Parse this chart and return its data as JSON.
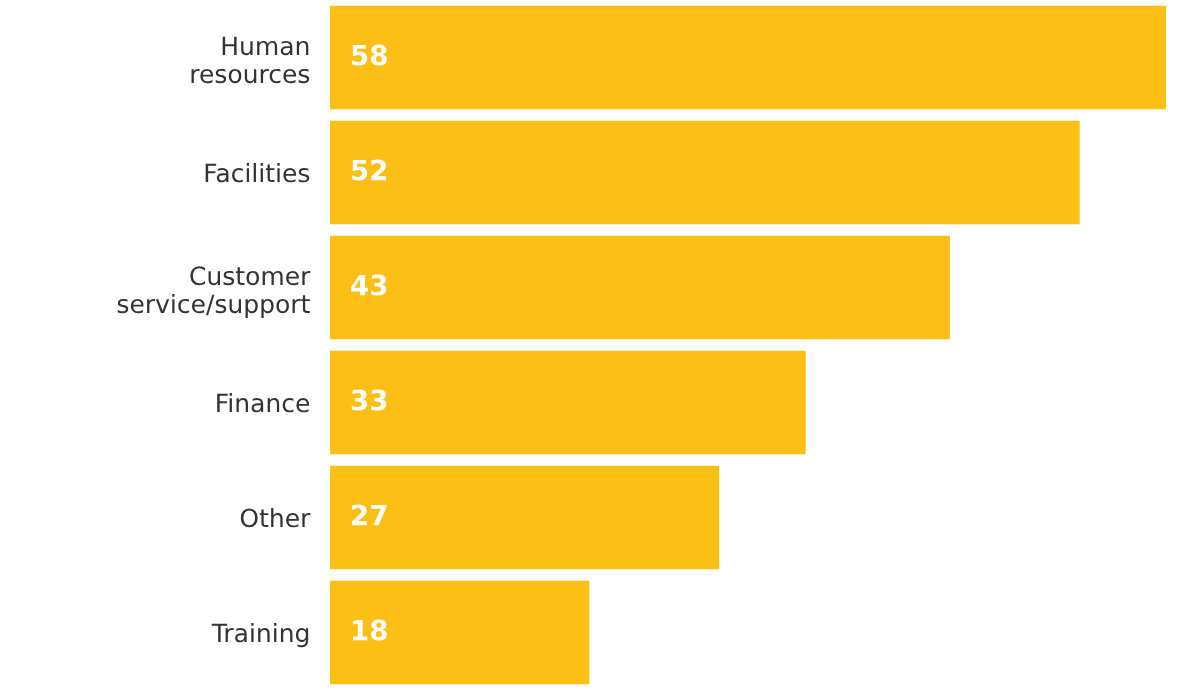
{
  "chart_data": {
    "type": "bar",
    "orientation": "horizontal",
    "categories": [
      "Human\nresources",
      "Facilities",
      "Customer\nservice/support",
      "Finance",
      "Other",
      "Training"
    ],
    "values": [
      58,
      52,
      43,
      33,
      27,
      18
    ],
    "color": "#fbbf16",
    "data_labels": true,
    "grid": false,
    "legend": false,
    "tick_labels": "y"
  }
}
